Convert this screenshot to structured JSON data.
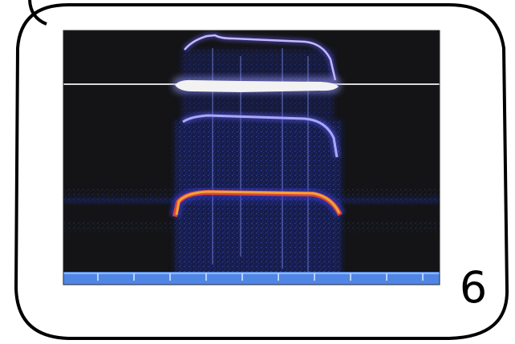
{
  "panel": {
    "number": "6"
  },
  "figure": {
    "icon": "spectrogram-image",
    "colors": {
      "frame": "#000000",
      "panel_fill": "#ffffff",
      "background": "#141416",
      "reference_line": "#d9d9d9",
      "band_glow": "#f2f2f2",
      "harmonic": "#5a5ae6",
      "fundamental": "#f0a23a",
      "noise": "#2c3fbf",
      "timeline_bar": "#4f86e6"
    }
  }
}
